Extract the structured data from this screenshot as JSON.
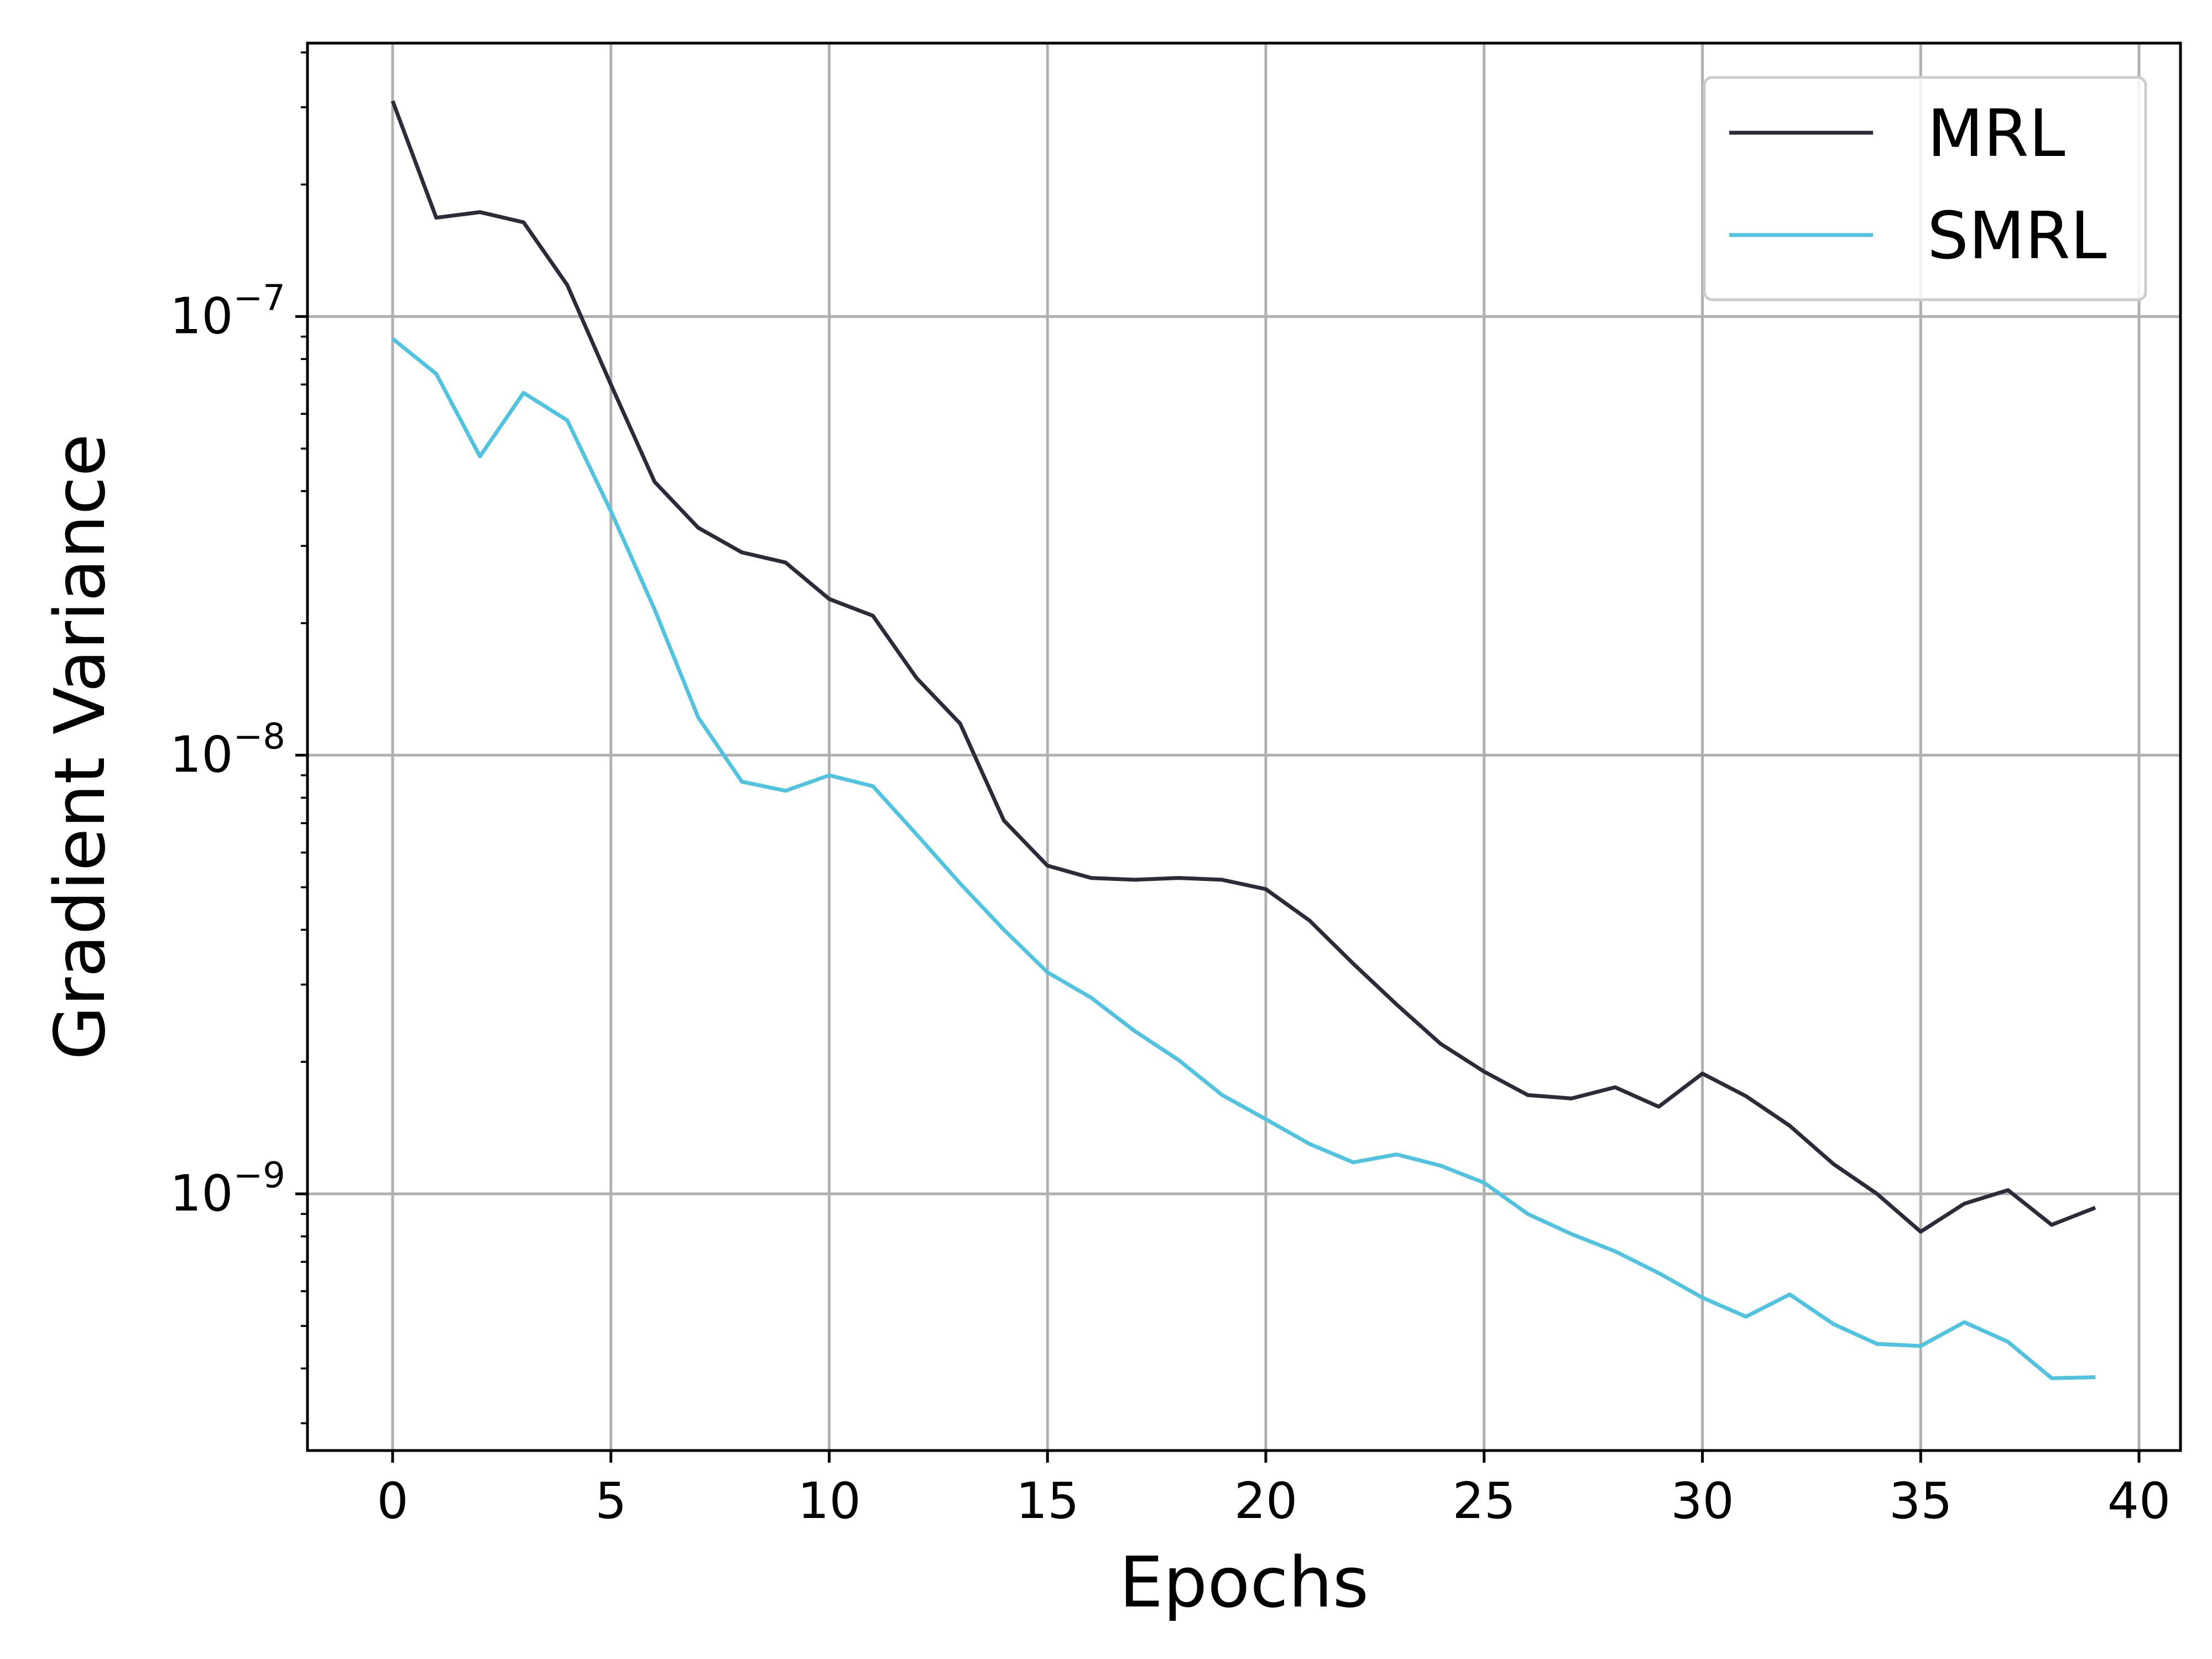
{
  "chart_data": {
    "type": "line",
    "title": "",
    "xlabel": "Epochs",
    "ylabel": "Gradient Variance",
    "xscale": "linear",
    "yscale": "log",
    "xlim": [
      -1.95,
      40.95
    ],
    "ylim": [
      2.6e-10,
      4.2e-07
    ],
    "x_ticks": [
      0,
      5,
      10,
      15,
      20,
      25,
      30,
      35,
      40
    ],
    "x_tick_labels": [
      "0",
      "5",
      "10",
      "15",
      "20",
      "25",
      "30",
      "35",
      "40"
    ],
    "y_ticks": [
      1e-09,
      1e-08,
      1e-07
    ],
    "y_tick_labels": [
      {
        "base": "10",
        "exp": "−9"
      },
      {
        "base": "10",
        "exp": "−8"
      },
      {
        "base": "10",
        "exp": "−7"
      }
    ],
    "grid": true,
    "legend_position": "upper right",
    "x": [
      0,
      1,
      2,
      3,
      4,
      5,
      6,
      7,
      8,
      9,
      10,
      11,
      12,
      13,
      14,
      15,
      16,
      17,
      18,
      19,
      20,
      21,
      22,
      23,
      24,
      25,
      26,
      27,
      28,
      29,
      30,
      31,
      32,
      33,
      34,
      35,
      36,
      37,
      38,
      39
    ],
    "series": [
      {
        "name": "MRL",
        "color": "#2b2b3a",
        "values": [
          3.1e-07,
          1.68e-07,
          1.73e-07,
          1.64e-07,
          1.18e-07,
          7e-08,
          4.2e-08,
          3.3e-08,
          2.9e-08,
          2.75e-08,
          2.27e-08,
          2.08e-08,
          1.5e-08,
          1.18e-08,
          7.1e-09,
          5.6e-09,
          5.25e-09,
          5.2e-09,
          5.25e-09,
          5.2e-09,
          4.95e-09,
          4.2e-09,
          3.35e-09,
          2.7e-09,
          2.2e-09,
          1.9e-09,
          1.68e-09,
          1.65e-09,
          1.75e-09,
          1.58e-09,
          1.88e-09,
          1.67e-09,
          1.43e-09,
          1.17e-09,
          1e-09,
          8.2e-10,
          9.5e-10,
          1.02e-09,
          8.5e-10,
          9.3e-10
        ]
      },
      {
        "name": "SMRL",
        "color": "#4fc3e0",
        "values": [
          8.9e-08,
          7.4e-08,
          4.8e-08,
          6.7e-08,
          5.8e-08,
          3.6e-08,
          2.15e-08,
          1.22e-08,
          8.7e-09,
          8.3e-09,
          9e-09,
          8.5e-09,
          6.6e-09,
          5.1e-09,
          4e-09,
          3.2e-09,
          2.8e-09,
          2.35e-09,
          2.02e-09,
          1.68e-09,
          1.48e-09,
          1.3e-09,
          1.18e-09,
          1.23e-09,
          1.16e-09,
          1.06e-09,
          9e-10,
          8.1e-10,
          7.4e-10,
          6.6e-10,
          5.8e-10,
          5.25e-10,
          5.9e-10,
          5.05e-10,
          4.55e-10,
          4.5e-10,
          5.1e-10,
          4.6e-10,
          3.8e-10,
          3.82e-10
        ]
      }
    ]
  }
}
